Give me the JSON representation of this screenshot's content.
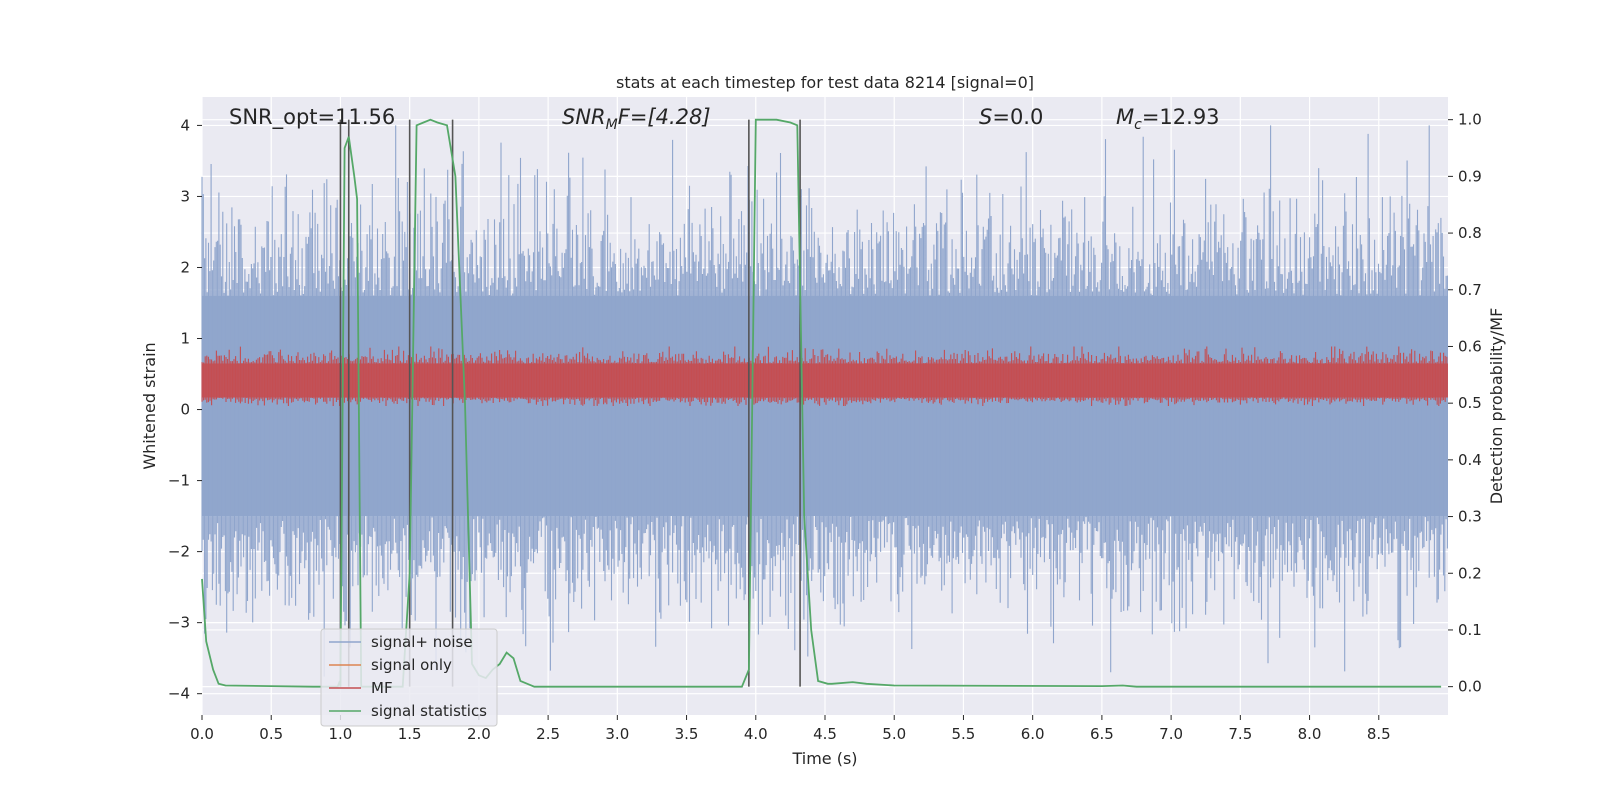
{
  "chart_data": {
    "type": "line",
    "title": "stats at each timestep for test data 8214 [signal=0]",
    "xlabel": "Time (s)",
    "ylabel_left": "Whitened strain",
    "ylabel_right": "Detection probability/MF",
    "xlim": [
      0,
      9.0
    ],
    "ylim_left": [
      -4.3,
      4.4
    ],
    "ylim_right": [
      -0.05,
      1.04
    ],
    "x_ticks": [
      0.0,
      0.5,
      1.0,
      1.5,
      2.0,
      2.5,
      3.0,
      3.5,
      4.0,
      4.5,
      5.0,
      5.5,
      6.0,
      6.5,
      7.0,
      7.5,
      8.0,
      8.5
    ],
    "x_tick_labels": [
      "0.0",
      "0.5",
      "1.0",
      "1.5",
      "2.0",
      "2.5",
      "3.0",
      "3.5",
      "4.0",
      "4.5",
      "5.0",
      "5.5",
      "6.0",
      "6.5",
      "7.0",
      "7.5",
      "8.0",
      "8.5"
    ],
    "y_left_ticks": [
      4,
      3,
      2,
      1,
      0,
      -1,
      -2,
      -3,
      -4
    ],
    "y_left_tick_labels": [
      "4",
      "3",
      "2",
      "1",
      "0",
      "−1",
      "−2",
      "−3",
      "−4"
    ],
    "y_right_ticks": [
      1.0,
      0.9,
      0.8,
      0.7,
      0.6,
      0.5,
      0.4,
      0.3,
      0.2,
      0.1,
      0.0
    ],
    "y_right_tick_labels": [
      "1.0",
      "0.9",
      "0.8",
      "0.7",
      "0.6",
      "0.5",
      "0.4",
      "0.3",
      "0.2",
      "0.1",
      "0.0"
    ],
    "annotations": {
      "snr_opt": "SNR_opt=11.56",
      "snr_mf_base": "SNR",
      "snr_mf_sub": "M",
      "snr_mf_rest": "F=[4.28]",
      "s_base": "S",
      "s_rest": "=0.0",
      "mc_base": "M",
      "mc_sub": "c",
      "mc_rest": "=12.93"
    },
    "legend": {
      "position": "lower-left",
      "entries": [
        {
          "label": "signal+ noise",
          "color": "#8fa5cc"
        },
        {
          "label": "signal only",
          "color": "#dd8452"
        },
        {
          "label": "MF",
          "color": "#c44e52"
        },
        {
          "label": "signal statistics",
          "color": "#55a868"
        }
      ]
    },
    "series": [
      {
        "name": "signal+ noise",
        "axis": "left",
        "style": "dense-noise",
        "color": "#8fa5cc",
        "envelope": {
          "typical_low": -1.5,
          "typical_high": 1.6,
          "min": -3.9,
          "max": 4.0
        }
      },
      {
        "name": "MF",
        "axis": "right",
        "style": "dense-noise",
        "color": "#c44e52",
        "envelope": {
          "typical_low": 0.51,
          "typical_high": 0.57,
          "min": 0.495,
          "max": 0.6
        }
      },
      {
        "name": "signal statistics",
        "axis": "right",
        "color": "#55a868",
        "x": [
          0.0,
          0.03,
          0.08,
          0.12,
          0.17,
          0.5,
          0.8,
          0.98,
          0.995,
          1.0,
          1.03,
          1.06,
          1.1,
          1.12,
          1.15,
          1.45,
          1.5,
          1.55,
          1.6,
          1.65,
          1.7,
          1.77,
          1.83,
          1.9,
          1.95,
          2.0,
          2.05,
          2.1,
          2.15,
          2.2,
          2.25,
          2.3,
          2.35,
          2.4,
          3.7,
          3.9,
          3.95,
          4.0,
          4.05,
          4.1,
          4.15,
          4.25,
          4.3,
          4.35,
          4.4,
          4.45,
          4.52,
          4.55,
          4.7,
          4.8,
          5.0,
          6.5,
          6.65,
          6.75,
          8.95
        ],
        "y": [
          0.19,
          0.08,
          0.03,
          0.005,
          0.002,
          0.001,
          0.0,
          0.0,
          0.01,
          0.0,
          0.95,
          0.97,
          0.9,
          0.86,
          0.0,
          0.0,
          0.2,
          0.99,
          0.995,
          1.0,
          0.995,
          0.99,
          0.9,
          0.5,
          0.04,
          0.02,
          0.015,
          0.03,
          0.04,
          0.06,
          0.05,
          0.01,
          0.005,
          0.0,
          0.0,
          0.0,
          0.03,
          1.0,
          1.0,
          1.0,
          1.0,
          0.995,
          0.99,
          0.3,
          0.1,
          0.01,
          0.005,
          0.005,
          0.008,
          0.005,
          0.002,
          0.001,
          0.002,
          0.0,
          0.0
        ]
      }
    ],
    "vertical_lines": {
      "color": "#555555",
      "axis": "right",
      "positions": [
        1.0,
        1.06,
        1.5,
        1.81,
        3.95,
        4.32
      ],
      "y_range": [
        0.0,
        1.0
      ]
    }
  }
}
